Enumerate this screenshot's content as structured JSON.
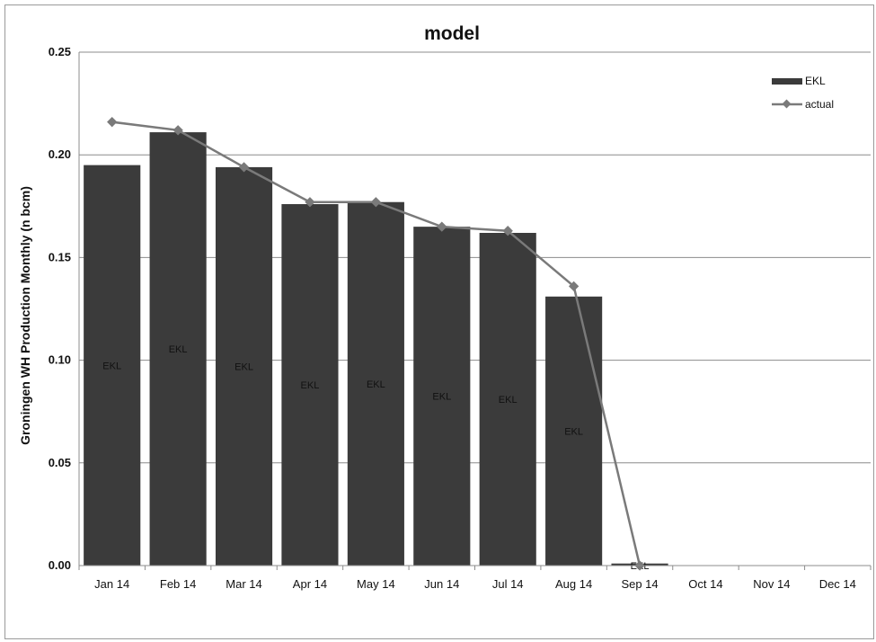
{
  "chart_data": {
    "type": "bar",
    "title": "model",
    "xlabel": "",
    "ylabel": "Groningen WH Production Monthly (n bcm)",
    "ylim": [
      0,
      0.25
    ],
    "yticks": [
      "0.00",
      "0.05",
      "0.10",
      "0.15",
      "0.20",
      "0.25"
    ],
    "categories": [
      "Jan 14",
      "Feb 14",
      "Mar 14",
      "Apr 14",
      "May 14",
      "Jun 14",
      "Jul 14",
      "Aug 14",
      "Sep 14",
      "Oct 14",
      "Nov 14",
      "Dec 14"
    ],
    "grid": true,
    "legend_position": "top-right",
    "series": [
      {
        "name": "EKL",
        "type": "bar",
        "color": "#3b3b3b",
        "data_label": "EKL",
        "values": [
          0.195,
          0.211,
          0.194,
          0.176,
          0.177,
          0.165,
          0.162,
          0.131,
          0.001,
          null,
          null,
          null
        ]
      },
      {
        "name": "actual",
        "type": "line",
        "color": "#7a7a7a",
        "marker": "diamond",
        "values": [
          0.216,
          0.212,
          0.194,
          0.177,
          0.177,
          0.165,
          0.163,
          0.136,
          0.0,
          null,
          null,
          null
        ]
      }
    ]
  }
}
